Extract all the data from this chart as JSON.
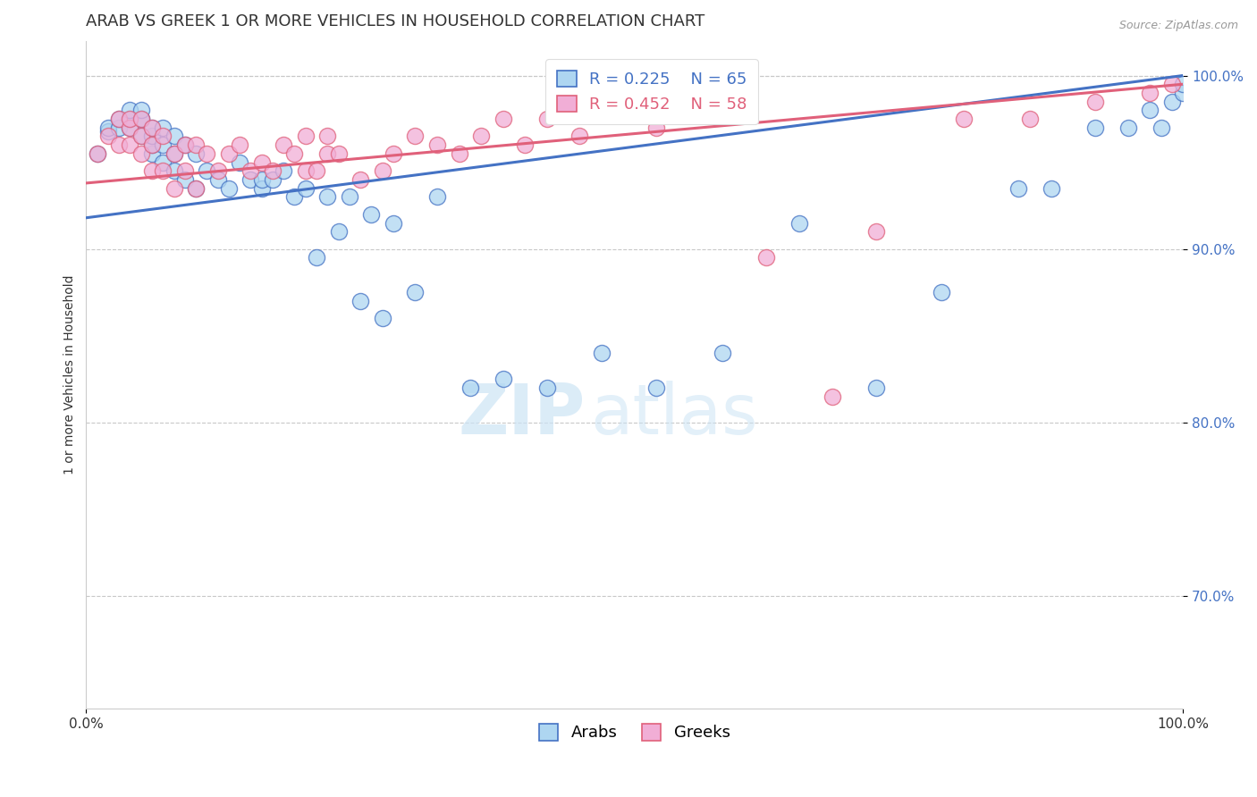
{
  "title": "ARAB VS GREEK 1 OR MORE VEHICLES IN HOUSEHOLD CORRELATION CHART",
  "source": "Source: ZipAtlas.com",
  "ylabel": "1 or more Vehicles in Household",
  "xmin": 0.0,
  "xmax": 1.0,
  "ymin": 0.635,
  "ymax": 1.02,
  "yticks": [
    0.7,
    0.8,
    0.9,
    1.0
  ],
  "ytick_labels": [
    "70.0%",
    "80.0%",
    "90.0%",
    "100.0%"
  ],
  "xticks": [
    0.0,
    1.0
  ],
  "xtick_labels": [
    "0.0%",
    "100.0%"
  ],
  "arab_R": 0.225,
  "arab_N": 65,
  "greek_R": 0.452,
  "greek_N": 58,
  "arab_color": "#aed6f1",
  "greek_color": "#f1aed6",
  "arab_line_color": "#4472c4",
  "greek_line_color": "#e0607a",
  "background_color": "#ffffff",
  "grid_color": "#c8c8c8",
  "title_fontsize": 13,
  "axis_label_fontsize": 10,
  "tick_fontsize": 11,
  "legend_fontsize": 13,
  "watermark_zip": "ZIP",
  "watermark_atlas": "atlas",
  "arab_line_intercept": 0.918,
  "arab_line_slope": 0.082,
  "greek_line_intercept": 0.938,
  "greek_line_slope": 0.057,
  "arab_x": [
    0.01,
    0.02,
    0.02,
    0.03,
    0.03,
    0.04,
    0.04,
    0.04,
    0.05,
    0.05,
    0.05,
    0.05,
    0.06,
    0.06,
    0.06,
    0.06,
    0.07,
    0.07,
    0.07,
    0.08,
    0.08,
    0.08,
    0.09,
    0.09,
    0.1,
    0.1,
    0.11,
    0.12,
    0.13,
    0.14,
    0.15,
    0.16,
    0.16,
    0.17,
    0.18,
    0.19,
    0.2,
    0.21,
    0.22,
    0.23,
    0.24,
    0.25,
    0.26,
    0.27,
    0.28,
    0.3,
    0.32,
    0.35,
    0.38,
    0.42,
    0.47,
    0.52,
    0.58,
    0.65,
    0.72,
    0.78,
    0.85,
    0.88,
    0.92,
    0.95,
    0.97,
    0.98,
    0.99,
    1.0,
    1.0
  ],
  "arab_y": [
    0.955,
    0.968,
    0.97,
    0.97,
    0.975,
    0.97,
    0.975,
    0.98,
    0.965,
    0.975,
    0.975,
    0.98,
    0.955,
    0.96,
    0.965,
    0.97,
    0.95,
    0.96,
    0.97,
    0.945,
    0.955,
    0.965,
    0.94,
    0.96,
    0.935,
    0.955,
    0.945,
    0.94,
    0.935,
    0.95,
    0.94,
    0.935,
    0.94,
    0.94,
    0.945,
    0.93,
    0.935,
    0.895,
    0.93,
    0.91,
    0.93,
    0.87,
    0.92,
    0.86,
    0.915,
    0.875,
    0.93,
    0.82,
    0.825,
    0.82,
    0.84,
    0.82,
    0.84,
    0.915,
    0.82,
    0.875,
    0.935,
    0.935,
    0.97,
    0.97,
    0.98,
    0.97,
    0.985,
    0.99,
    0.995
  ],
  "greek_x": [
    0.01,
    0.02,
    0.03,
    0.03,
    0.04,
    0.04,
    0.04,
    0.05,
    0.05,
    0.05,
    0.06,
    0.06,
    0.06,
    0.07,
    0.07,
    0.08,
    0.08,
    0.09,
    0.09,
    0.1,
    0.1,
    0.11,
    0.12,
    0.13,
    0.14,
    0.15,
    0.16,
    0.17,
    0.18,
    0.19,
    0.2,
    0.2,
    0.21,
    0.22,
    0.22,
    0.23,
    0.25,
    0.27,
    0.28,
    0.3,
    0.32,
    0.34,
    0.36,
    0.38,
    0.4,
    0.42,
    0.45,
    0.48,
    0.52,
    0.55,
    0.62,
    0.68,
    0.72,
    0.8,
    0.86,
    0.92,
    0.97,
    0.99
  ],
  "greek_y": [
    0.955,
    0.965,
    0.96,
    0.975,
    0.96,
    0.97,
    0.975,
    0.955,
    0.965,
    0.975,
    0.945,
    0.96,
    0.97,
    0.945,
    0.965,
    0.935,
    0.955,
    0.945,
    0.96,
    0.935,
    0.96,
    0.955,
    0.945,
    0.955,
    0.96,
    0.945,
    0.95,
    0.945,
    0.96,
    0.955,
    0.945,
    0.965,
    0.945,
    0.955,
    0.965,
    0.955,
    0.94,
    0.945,
    0.955,
    0.965,
    0.96,
    0.955,
    0.965,
    0.975,
    0.96,
    0.975,
    0.965,
    0.98,
    0.97,
    0.985,
    0.895,
    0.815,
    0.91,
    0.975,
    0.975,
    0.985,
    0.99,
    0.995
  ]
}
